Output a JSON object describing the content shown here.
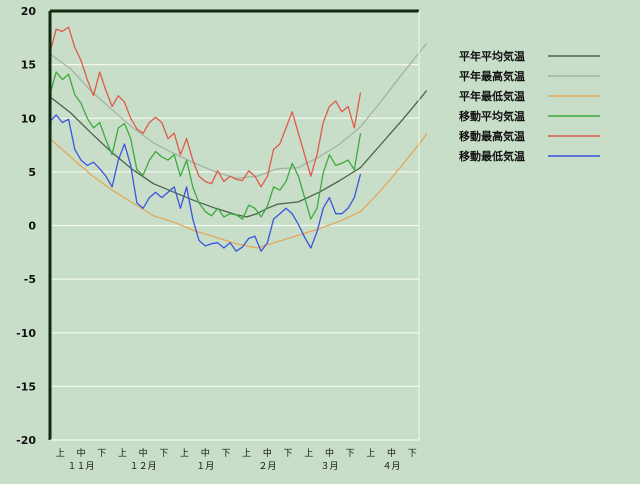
{
  "chart_data": {
    "type": "line",
    "title": "",
    "xlabel": "",
    "ylabel": "",
    "ylim": [
      -20,
      20
    ],
    "yticks": [
      20,
      15,
      10,
      5,
      0,
      -5,
      -10,
      -15,
      -20
    ],
    "ytick_labels": [
      "20",
      "15",
      "10",
      "5",
      "0",
      "-5",
      "-10",
      "-15",
      "-20"
    ],
    "xlim": [
      0,
      18
    ],
    "xticks": [
      {
        "x": 0.5,
        "label": "上"
      },
      {
        "x": 1.5,
        "label": "中"
      },
      {
        "x": 2.5,
        "label": "下"
      },
      {
        "x": 3.5,
        "label": "上"
      },
      {
        "x": 4.5,
        "label": "中"
      },
      {
        "x": 5.5,
        "label": "下"
      },
      {
        "x": 6.5,
        "label": "上"
      },
      {
        "x": 7.5,
        "label": "中"
      },
      {
        "x": 8.5,
        "label": "下"
      },
      {
        "x": 9.5,
        "label": "上"
      },
      {
        "x": 10.5,
        "label": "中"
      },
      {
        "x": 11.5,
        "label": "下"
      },
      {
        "x": 12.5,
        "label": "上"
      },
      {
        "x": 13.5,
        "label": "中"
      },
      {
        "x": 14.5,
        "label": "下"
      },
      {
        "x": 15.5,
        "label": "上"
      },
      {
        "x": 16.5,
        "label": "中"
      },
      {
        "x": 17.5,
        "label": "下"
      }
    ],
    "months": [
      {
        "x": 1.5,
        "label": "１１月"
      },
      {
        "x": 4.5,
        "label": "１２月"
      },
      {
        "x": 7.5,
        "label": "１月"
      },
      {
        "x": 10.5,
        "label": "２月"
      },
      {
        "x": 13.5,
        "label": "３月"
      },
      {
        "x": 16.5,
        "label": "４月"
      }
    ],
    "grid": true,
    "legend": "right",
    "series": [
      {
        "name": "平年平均気温",
        "color": "#4a634a",
        "points": [
          [
            0,
            12
          ],
          [
            1,
            10.5
          ],
          [
            2,
            8.6
          ],
          [
            3,
            6.8
          ],
          [
            4,
            5.2
          ],
          [
            5,
            3.9
          ],
          [
            6,
            3.1
          ],
          [
            7,
            2.3
          ],
          [
            8,
            1.6
          ],
          [
            9,
            1.0
          ],
          [
            9.5,
            0.8
          ],
          [
            10,
            1.1
          ],
          [
            10.5,
            1.6
          ],
          [
            11,
            2.0
          ],
          [
            12,
            2.2
          ],
          [
            13,
            3.1
          ],
          [
            14,
            4.2
          ],
          [
            15,
            5.4
          ],
          [
            16,
            7.6
          ],
          [
            17,
            9.8
          ],
          [
            18,
            12.1
          ],
          [
            18.2,
            12.6
          ]
        ]
      },
      {
        "name": "平年最高気温",
        "color": "#a3b3a3",
        "points": [
          [
            0,
            16
          ],
          [
            1,
            14.6
          ],
          [
            2,
            12.5
          ],
          [
            3,
            10.8
          ],
          [
            4,
            9.1
          ],
          [
            5,
            7.7
          ],
          [
            6,
            6.7
          ],
          [
            7,
            5.8
          ],
          [
            8,
            5.0
          ],
          [
            9,
            4.4
          ],
          [
            10,
            4.6
          ],
          [
            11,
            5.3
          ],
          [
            12,
            5.4
          ],
          [
            13,
            6.4
          ],
          [
            14,
            7.6
          ],
          [
            15,
            9.2
          ],
          [
            16,
            11.6
          ],
          [
            17,
            14.1
          ],
          [
            18,
            16.5
          ],
          [
            18.2,
            17.0
          ]
        ]
      },
      {
        "name": "平年最低気温",
        "color": "#e3a75a",
        "points": [
          [
            0,
            8.1
          ],
          [
            1,
            6.4
          ],
          [
            2,
            4.7
          ],
          [
            3,
            3.3
          ],
          [
            4,
            2.1
          ],
          [
            5,
            0.9
          ],
          [
            6,
            0.3
          ],
          [
            7,
            -0.5
          ],
          [
            8,
            -1.1
          ],
          [
            9,
            -1.7
          ],
          [
            10,
            -2.1
          ],
          [
            11,
            -1.5
          ],
          [
            12,
            -0.9
          ],
          [
            13,
            -0.3
          ],
          [
            14,
            0.4
          ],
          [
            15,
            1.3
          ],
          [
            16,
            3.3
          ],
          [
            17,
            5.6
          ],
          [
            18,
            8.0
          ],
          [
            18.2,
            8.6
          ]
        ]
      },
      {
        "name": "移動平均気温",
        "color": "#3daa3d",
        "points": [
          [
            0,
            1
          ],
          [
            0.05,
            12.6
          ],
          [
            0.3,
            14.3
          ],
          [
            0.6,
            13.6
          ],
          [
            0.9,
            14.1
          ],
          [
            1.2,
            12.2
          ],
          [
            1.5,
            11.4
          ],
          [
            1.8,
            10.0
          ],
          [
            2.1,
            9.1
          ],
          [
            2.4,
            9.6
          ],
          [
            2.7,
            8.0
          ],
          [
            3.0,
            6.6
          ],
          [
            3.3,
            9.1
          ],
          [
            3.6,
            9.5
          ],
          [
            3.9,
            8.1
          ],
          [
            4.2,
            5.2
          ],
          [
            4.5,
            4.7
          ],
          [
            4.8,
            6.1
          ],
          [
            5.1,
            6.9
          ],
          [
            5.4,
            6.4
          ],
          [
            5.7,
            6.1
          ],
          [
            6.0,
            6.6
          ],
          [
            6.3,
            4.6
          ],
          [
            6.6,
            6.1
          ],
          [
            6.9,
            3.6
          ],
          [
            7.2,
            2.1
          ],
          [
            7.5,
            1.3
          ],
          [
            7.8,
            0.9
          ],
          [
            8.1,
            1.6
          ],
          [
            8.4,
            0.8
          ],
          [
            8.7,
            1.1
          ],
          [
            9.0,
            1.0
          ],
          [
            9.3,
            0.6
          ],
          [
            9.6,
            1.9
          ],
          [
            9.9,
            1.6
          ],
          [
            10.2,
            0.8
          ],
          [
            10.5,
            1.8
          ],
          [
            10.8,
            3.6
          ],
          [
            11.1,
            3.3
          ],
          [
            11.4,
            4.1
          ],
          [
            11.7,
            5.8
          ],
          [
            12.0,
            4.6
          ],
          [
            12.3,
            2.6
          ],
          [
            12.6,
            0.6
          ],
          [
            12.9,
            1.6
          ],
          [
            13.2,
            4.9
          ],
          [
            13.5,
            6.6
          ],
          [
            13.8,
            5.6
          ],
          [
            14.1,
            5.8
          ],
          [
            14.4,
            6.1
          ],
          [
            14.7,
            5.2
          ],
          [
            15.0,
            8.6
          ]
        ]
      },
      {
        "name": "移動最高気温",
        "color": "#e05a4a",
        "points": [
          [
            0,
            13
          ],
          [
            0.05,
            16.5
          ],
          [
            0.3,
            18.3
          ],
          [
            0.6,
            18.1
          ],
          [
            0.9,
            18.5
          ],
          [
            1.2,
            16.6
          ],
          [
            1.5,
            15.4
          ],
          [
            1.8,
            13.6
          ],
          [
            2.1,
            12.1
          ],
          [
            2.4,
            14.3
          ],
          [
            2.7,
            12.6
          ],
          [
            3.0,
            11.1
          ],
          [
            3.3,
            12.1
          ],
          [
            3.6,
            11.5
          ],
          [
            3.9,
            10.0
          ],
          [
            4.2,
            9.0
          ],
          [
            4.5,
            8.6
          ],
          [
            4.8,
            9.6
          ],
          [
            5.1,
            10.1
          ],
          [
            5.4,
            9.6
          ],
          [
            5.7,
            8.1
          ],
          [
            6.0,
            8.6
          ],
          [
            6.3,
            6.6
          ],
          [
            6.6,
            8.1
          ],
          [
            6.9,
            6.1
          ],
          [
            7.2,
            4.6
          ],
          [
            7.5,
            4.1
          ],
          [
            7.8,
            3.9
          ],
          [
            8.1,
            5.1
          ],
          [
            8.4,
            4.1
          ],
          [
            8.7,
            4.6
          ],
          [
            9.0,
            4.3
          ],
          [
            9.3,
            4.2
          ],
          [
            9.6,
            5.1
          ],
          [
            9.9,
            4.6
          ],
          [
            10.2,
            3.6
          ],
          [
            10.5,
            4.6
          ],
          [
            10.8,
            7.1
          ],
          [
            11.1,
            7.6
          ],
          [
            11.4,
            9.1
          ],
          [
            11.7,
            10.6
          ],
          [
            12.0,
            8.6
          ],
          [
            12.3,
            6.6
          ],
          [
            12.6,
            4.6
          ],
          [
            12.9,
            6.6
          ],
          [
            13.2,
            9.6
          ],
          [
            13.5,
            11.1
          ],
          [
            13.8,
            11.6
          ],
          [
            14.1,
            10.6
          ],
          [
            14.4,
            11.1
          ],
          [
            14.7,
            9.1
          ],
          [
            15.0,
            12.4
          ]
        ]
      },
      {
        "name": "移動最低気温",
        "color": "#3b54dd",
        "points": [
          [
            0,
            0
          ],
          [
            0.05,
            9.8
          ],
          [
            0.3,
            10.3
          ],
          [
            0.6,
            9.6
          ],
          [
            0.9,
            9.9
          ],
          [
            1.2,
            7.1
          ],
          [
            1.5,
            6.1
          ],
          [
            1.8,
            5.6
          ],
          [
            2.1,
            5.9
          ],
          [
            2.4,
            5.3
          ],
          [
            2.7,
            4.6
          ],
          [
            3.0,
            3.6
          ],
          [
            3.3,
            6.1
          ],
          [
            3.6,
            7.6
          ],
          [
            3.9,
            5.6
          ],
          [
            4.2,
            2.1
          ],
          [
            4.5,
            1.6
          ],
          [
            4.8,
            2.6
          ],
          [
            5.1,
            3.1
          ],
          [
            5.4,
            2.6
          ],
          [
            5.7,
            3.1
          ],
          [
            6.0,
            3.6
          ],
          [
            6.3,
            1.6
          ],
          [
            6.6,
            3.6
          ],
          [
            6.9,
            0.6
          ],
          [
            7.2,
            -1.4
          ],
          [
            7.5,
            -1.9
          ],
          [
            7.8,
            -1.7
          ],
          [
            8.1,
            -1.6
          ],
          [
            8.4,
            -2.1
          ],
          [
            8.7,
            -1.6
          ],
          [
            9.0,
            -2.4
          ],
          [
            9.3,
            -2.0
          ],
          [
            9.6,
            -1.2
          ],
          [
            9.9,
            -1.0
          ],
          [
            10.2,
            -2.4
          ],
          [
            10.5,
            -1.6
          ],
          [
            10.8,
            0.6
          ],
          [
            11.1,
            1.1
          ],
          [
            11.4,
            1.6
          ],
          [
            11.7,
            1.1
          ],
          [
            12.0,
            0.1
          ],
          [
            12.3,
            -1.1
          ],
          [
            12.6,
            -2.1
          ],
          [
            12.9,
            -0.6
          ],
          [
            13.2,
            1.6
          ],
          [
            13.5,
            2.6
          ],
          [
            13.8,
            1.1
          ],
          [
            14.1,
            1.1
          ],
          [
            14.4,
            1.6
          ],
          [
            14.7,
            2.6
          ],
          [
            15.0,
            4.8
          ]
        ]
      }
    ]
  }
}
